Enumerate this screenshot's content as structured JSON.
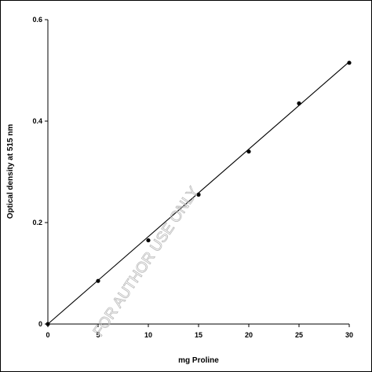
{
  "chart_data": {
    "type": "scatter",
    "xlabel": "mg Proline",
    "ylabel": "Optical density at 515 nm",
    "xlim": [
      0,
      30
    ],
    "ylim": [
      0,
      0.6
    ],
    "x_ticks": [
      "0",
      "5",
      "10",
      "15",
      "20",
      "25",
      "30"
    ],
    "y_ticks": [
      "0",
      "0.2",
      "0.4",
      "0.6"
    ],
    "x_tick_values": [
      0,
      5,
      10,
      15,
      20,
      25,
      30
    ],
    "y_tick_values": [
      0,
      0.2,
      0.4,
      0.6
    ],
    "points": [
      {
        "x": 0,
        "y": 0
      },
      {
        "x": 5,
        "y": 0.085
      },
      {
        "x": 10,
        "y": 0.165
      },
      {
        "x": 15,
        "y": 0.255
      },
      {
        "x": 20,
        "y": 0.34
      },
      {
        "x": 25,
        "y": 0.435
      },
      {
        "x": 30,
        "y": 0.515
      }
    ],
    "trendline": {
      "x": [
        0,
        30
      ],
      "y": [
        0,
        0.517
      ]
    },
    "grid": false,
    "legend": "none",
    "marker_color": "#000000",
    "line_color": "#000000"
  },
  "watermark": {
    "text": "FOR AUTHOR USE ONLY",
    "color": "#b8b8b8"
  }
}
